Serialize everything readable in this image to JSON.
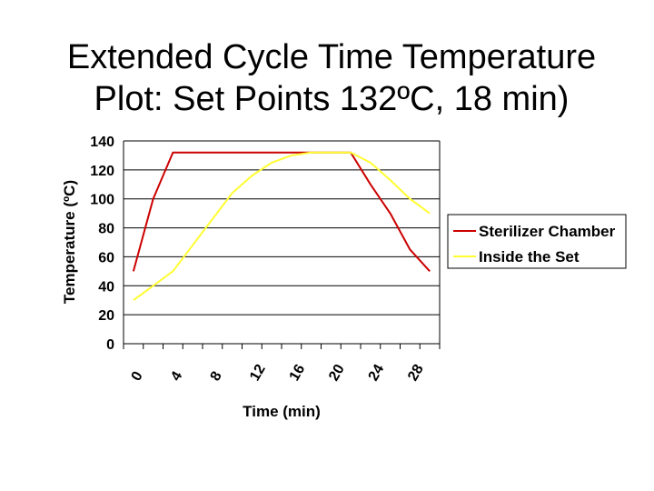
{
  "title_line1": "Extended Cycle Time Temperature",
  "title_line2": "Plot:  Set Points 132ºC, 18 min)",
  "chart_data": {
    "type": "line",
    "x": [
      0,
      2,
      4,
      6,
      8,
      10,
      12,
      14,
      16,
      18,
      20,
      22,
      24,
      26,
      28,
      30
    ],
    "series": [
      {
        "name": "Sterilizer Chamber",
        "color": "#cc0000",
        "values": [
          50,
          100,
          132,
          132,
          132,
          132,
          132,
          132,
          132,
          132,
          132,
          132,
          110,
          90,
          65,
          50
        ]
      },
      {
        "name": "Inside the Set",
        "color": "#ffff33",
        "values": [
          30,
          40,
          50,
          68,
          86,
          104,
          116,
          125,
          130,
          132,
          132,
          132,
          125,
          113,
          100,
          90
        ]
      }
    ],
    "x_ticks": [
      "0",
      "4",
      "8",
      "12",
      "16",
      "20",
      "24",
      "28"
    ],
    "y_ticks": [
      "0",
      "20",
      "40",
      "60",
      "80",
      "100",
      "120",
      "140"
    ],
    "xlabel": "Time (min)",
    "ylabel": "Temperature (ºC)",
    "ylim": [
      0,
      140
    ],
    "xlim": [
      -1,
      31
    ],
    "grid": "horizontal",
    "legend": "right"
  }
}
